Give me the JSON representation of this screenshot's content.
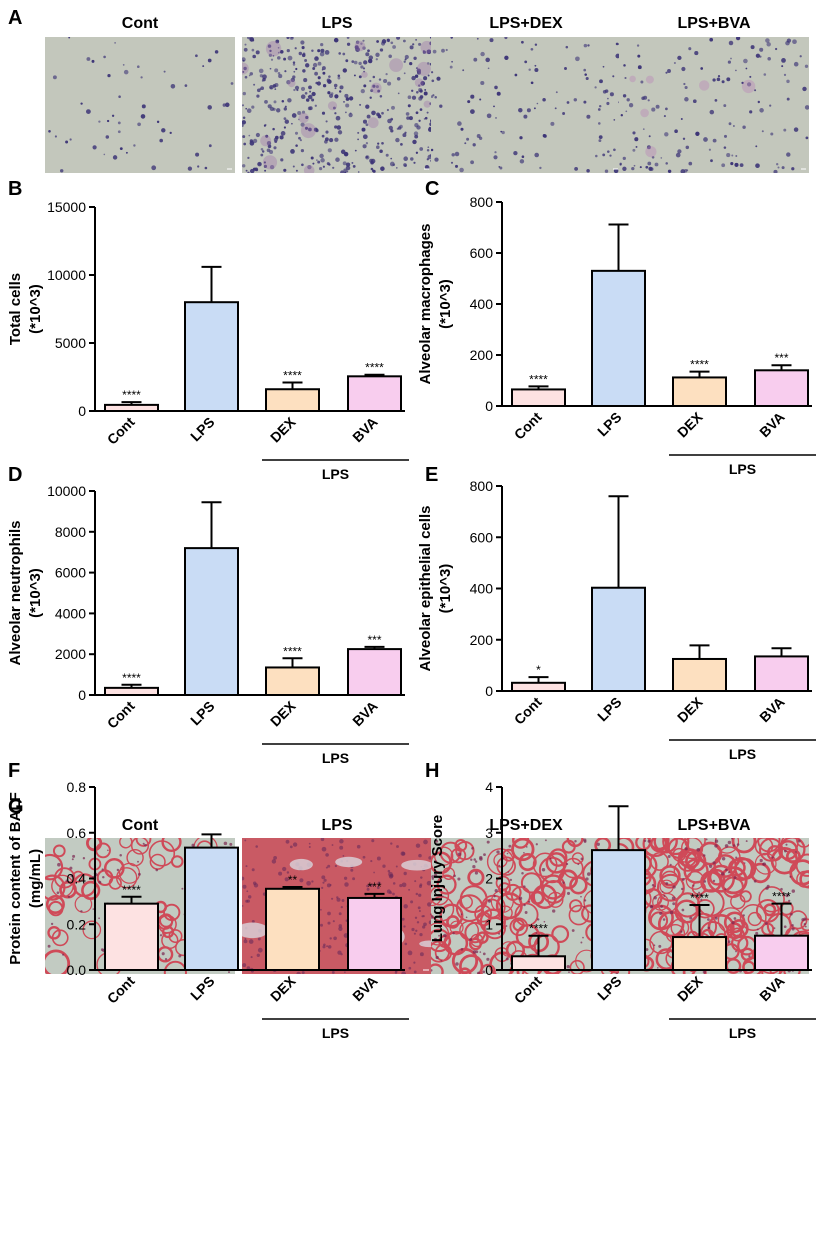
{
  "panel_letters": {
    "a": "A",
    "b": "B",
    "c": "C",
    "d": "D",
    "e": "E",
    "f": "F",
    "h": "H",
    "g": "G"
  },
  "micrograph_rows": [
    {
      "id": "A",
      "labels": [
        "Cont",
        "LPS",
        "LPS+DEX",
        "LPS+BVA"
      ],
      "stain": "cytospin"
    },
    {
      "id": "G",
      "labels": [
        "Cont",
        "LPS",
        "LPS+DEX",
        "LPS+BVA"
      ],
      "stain": "he"
    }
  ],
  "colors": {
    "cont": "#fde2e2",
    "lps": "#c9dcf5",
    "dex": "#fde0c0",
    "bva": "#f8cdee",
    "cyto_bg": "#c3c7bc",
    "cyto_cell": "#3d3577",
    "he_bg": "#c2cbc2",
    "he_tissue": "#cf4a58"
  },
  "chart_data": [
    {
      "id": "B",
      "type": "bar",
      "categories": [
        "Cont",
        "LPS",
        "DEX",
        "BVA"
      ],
      "group_label": "LPS",
      "ylabel": "Total cells",
      "ylabel2": "(*10^3)",
      "ylim": [
        0,
        15000
      ],
      "ticks": [
        0,
        5000,
        10000,
        15000
      ],
      "values": [
        450,
        8000,
        1600,
        2550
      ],
      "errors": [
        200,
        2600,
        500,
        120
      ],
      "significance": [
        "****",
        "",
        "****",
        "****"
      ]
    },
    {
      "id": "C",
      "type": "bar",
      "categories": [
        "Cont",
        "LPS",
        "DEX",
        "BVA"
      ],
      "group_label": "LPS",
      "ylabel": "Alveolar macrophages",
      "ylabel2": "(*10^3)",
      "ylim": [
        0,
        800
      ],
      "ticks": [
        0,
        200,
        400,
        600,
        800
      ],
      "values": [
        65,
        530,
        112,
        140
      ],
      "errors": [
        12,
        182,
        23,
        20
      ],
      "significance": [
        "****",
        "",
        "****",
        "***"
      ]
    },
    {
      "id": "D",
      "type": "bar",
      "categories": [
        "Cont",
        "LPS",
        "DEX",
        "BVA"
      ],
      "group_label": "LPS",
      "ylabel": "Alveolar neutrophils",
      "ylabel2": "(*10^3)",
      "ylim": [
        0,
        10000
      ],
      "ticks": [
        0,
        2000,
        4000,
        6000,
        8000,
        10000
      ],
      "values": [
        350,
        7200,
        1350,
        2250
      ],
      "errors": [
        150,
        2250,
        450,
        110
      ],
      "significance": [
        "****",
        "",
        "****",
        "***"
      ]
    },
    {
      "id": "E",
      "type": "bar",
      "categories": [
        "Cont",
        "LPS",
        "DEX",
        "BVA"
      ],
      "group_label": "LPS",
      "ylabel": "Alveolar epithelial cells",
      "ylabel2": "(*10^3)",
      "ylim": [
        0,
        800
      ],
      "ticks": [
        0,
        200,
        400,
        600,
        800
      ],
      "values": [
        32,
        403,
        125,
        135
      ],
      "errors": [
        22,
        357,
        53,
        32
      ],
      "significance": [
        "*",
        "",
        "",
        ""
      ]
    },
    {
      "id": "F",
      "type": "bar",
      "categories": [
        "Cont",
        "LPS",
        "DEX",
        "BVA"
      ],
      "group_label": "LPS",
      "ylabel": "Protein content of BALF",
      "ylabel2": "(mg/mL)",
      "ylim": [
        0,
        0.8
      ],
      "ticks": [
        "0.0",
        "0.2",
        "0.4",
        "0.6",
        "0.8"
      ],
      "values": [
        0.29,
        0.535,
        0.355,
        0.315
      ],
      "errors": [
        0.03,
        0.058,
        0.008,
        0.018
      ],
      "significance": [
        "****",
        "",
        "**",
        "***"
      ]
    },
    {
      "id": "H",
      "type": "bar",
      "categories": [
        "Cont",
        "LPS",
        "DEX",
        "BVA"
      ],
      "group_label": "LPS",
      "ylabel": "Lung Injury Score",
      "ylabel2": "",
      "ylim": [
        0,
        4
      ],
      "ticks": [
        0,
        1,
        2,
        3,
        4
      ],
      "values": [
        0.3,
        2.62,
        0.72,
        0.75
      ],
      "errors": [
        0.45,
        0.96,
        0.7,
        0.7
      ],
      "significance": [
        "****",
        "",
        "****",
        "****"
      ]
    }
  ]
}
